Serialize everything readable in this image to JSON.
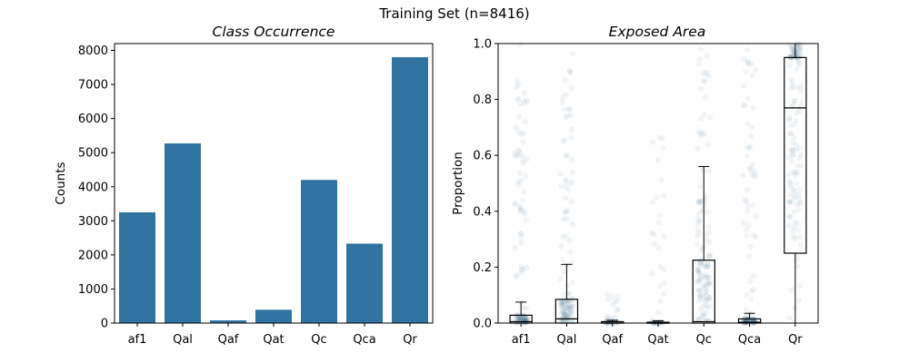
{
  "figure": {
    "title": "Training Set (n=8416)"
  },
  "chart_data": [
    {
      "type": "bar",
      "title": "Class Occurrence",
      "xlabel": "",
      "ylabel": "Counts",
      "categories": [
        "af1",
        "Qal",
        "Qaf",
        "Qat",
        "Qc",
        "Qca",
        "Qr"
      ],
      "values": [
        3250,
        5270,
        80,
        390,
        4200,
        2330,
        7800
      ],
      "ylim": [
        0,
        8200
      ],
      "yticks": [
        0,
        1000,
        2000,
        3000,
        4000,
        5000,
        6000,
        7000,
        8000
      ],
      "color": "#3274a1",
      "grid": false
    },
    {
      "type": "box",
      "title": "Exposed Area",
      "xlabel": "",
      "ylabel": "Proportion",
      "categories": [
        "af1",
        "Qal",
        "Qaf",
        "Qat",
        "Qc",
        "Qca",
        "Qr"
      ],
      "ylim": [
        0,
        1
      ],
      "yticks": [
        0.0,
        0.2,
        0.4,
        0.6,
        0.8,
        1.0
      ],
      "point_color": "#1f4e79",
      "boxes": [
        {
          "q1": 0.0,
          "median": 0.005,
          "q3": 0.028,
          "whisker_low": 0.0,
          "whisker_high": 0.075
        },
        {
          "q1": 0.0,
          "median": 0.015,
          "q3": 0.085,
          "whisker_low": 0.0,
          "whisker_high": 0.21
        },
        {
          "q1": 0.0,
          "median": 0.0,
          "q3": 0.005,
          "whisker_low": 0.0,
          "whisker_high": 0.01
        },
        {
          "q1": 0.0,
          "median": 0.0,
          "q3": 0.003,
          "whisker_low": 0.0,
          "whisker_high": 0.008
        },
        {
          "q1": 0.0,
          "median": 0.005,
          "q3": 0.225,
          "whisker_low": 0.0,
          "whisker_high": 0.56
        },
        {
          "q1": 0.0,
          "median": 0.003,
          "q3": 0.015,
          "whisker_low": 0.0,
          "whisker_high": 0.035
        },
        {
          "q1": 0.25,
          "median": 0.77,
          "q3": 0.95,
          "whisker_low": 0.0,
          "whisker_high": 1.0
        }
      ],
      "point_spread": [
        {
          "max": 1.0,
          "density": 0.9
        },
        {
          "max": 1.0,
          "density": 0.95
        },
        {
          "max": 0.12,
          "density": 0.15
        },
        {
          "max": 0.69,
          "density": 0.25
        },
        {
          "max": 1.0,
          "density": 0.95
        },
        {
          "max": 1.0,
          "density": 0.85
        },
        {
          "max": 1.0,
          "density": 1.0
        }
      ],
      "grid": false
    }
  ]
}
